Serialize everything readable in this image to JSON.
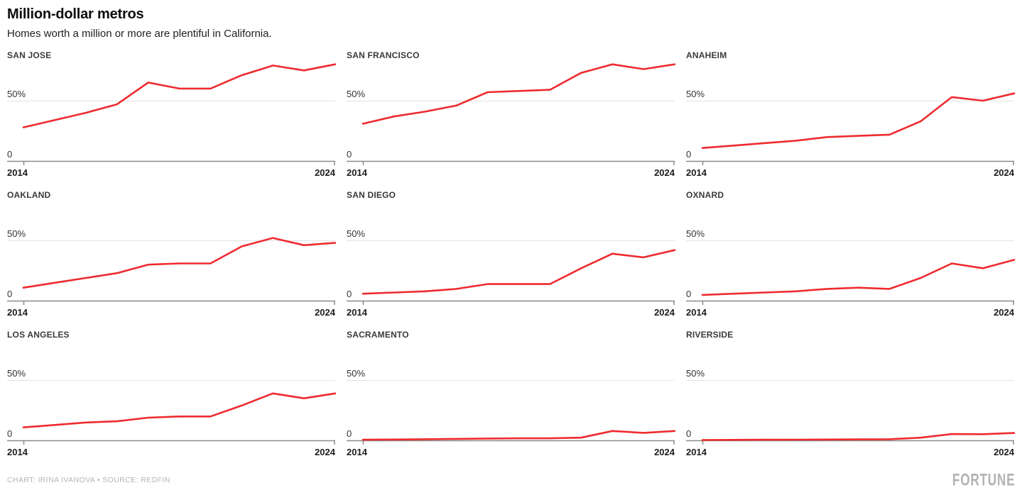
{
  "header": {
    "title": "Million-dollar metros",
    "subtitle": "Homes worth a million or more are plentiful in California."
  },
  "chart_data": {
    "type": "line",
    "layout": "small-multiples-3x3",
    "x": [
      2014,
      2015,
      2016,
      2017,
      2018,
      2019,
      2020,
      2021,
      2022,
      2023,
      2024
    ],
    "xticks": [
      "2014",
      "2024"
    ],
    "yticks": [
      "0",
      "50%"
    ],
    "ylim": [
      0,
      85
    ],
    "gridline_value": 50,
    "grid_on": true,
    "line_color": "#ee2b2f",
    "axis_color": "#8a8a8a",
    "gridline_color": "#e3e3e3",
    "panels": [
      {
        "name": "SAN JOSE",
        "values": [
          28,
          34,
          40,
          47,
          65,
          60,
          60,
          71,
          79,
          75,
          80
        ]
      },
      {
        "name": "SAN FRANCISCO",
        "values": [
          31,
          37,
          41,
          46,
          57,
          58,
          59,
          73,
          80,
          76,
          80
        ]
      },
      {
        "name": "ANAHEIM",
        "values": [
          11,
          13,
          15,
          17,
          20,
          21,
          22,
          33,
          53,
          50,
          56
        ]
      },
      {
        "name": "OAKLAND",
        "values": [
          11,
          15,
          19,
          23,
          30,
          31,
          31,
          45,
          52,
          46,
          48
        ]
      },
      {
        "name": "SAN DIEGO",
        "values": [
          6,
          7,
          8,
          10,
          14,
          14,
          14,
          27,
          39,
          36,
          42
        ]
      },
      {
        "name": "OXNARD",
        "values": [
          5,
          6,
          7,
          8,
          10,
          11,
          10,
          19,
          31,
          27,
          34
        ]
      },
      {
        "name": "LOS ANGELES",
        "values": [
          11,
          13,
          15,
          16,
          19,
          20,
          20,
          29,
          39,
          35,
          39
        ]
      },
      {
        "name": "SACRAMENTO",
        "values": [
          0.8,
          1,
          1.2,
          1.5,
          1.8,
          2,
          2,
          2.5,
          8,
          6.5,
          8
        ]
      },
      {
        "name": "RIVERSIDE",
        "values": [
          0.6,
          0.7,
          0.8,
          0.9,
          1,
          1.1,
          1.2,
          2.5,
          5.5,
          5.4,
          6.4
        ]
      }
    ]
  },
  "footer": {
    "credit": "CHART: IRINA IVANOVA • SOURCE: REDFIN",
    "brand": "FORTUNE"
  }
}
